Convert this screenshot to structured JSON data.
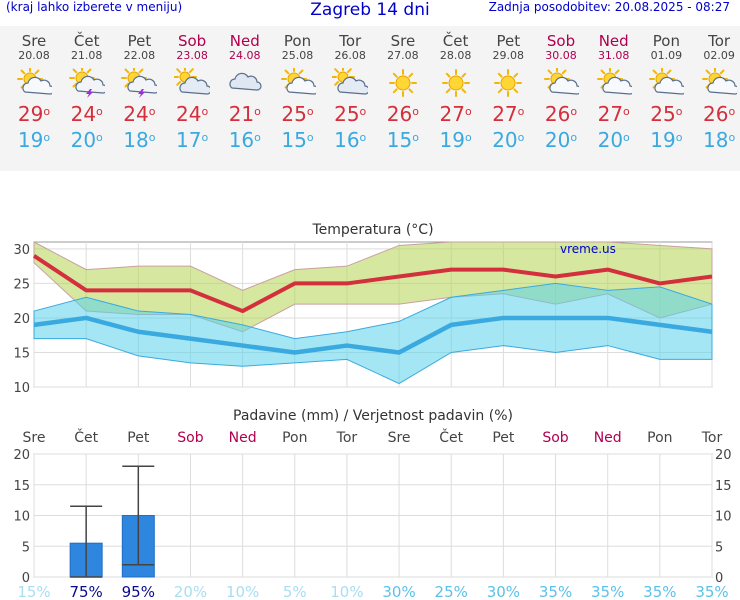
{
  "header": {
    "menu_hint": "(kraj lahko izberete v meniju)",
    "title": "Zagreb 14 dni",
    "last_update": "Zadnja posodobitev: 20.08.2025 - 08:27"
  },
  "days": [
    {
      "name": "Sre",
      "date": "20.08",
      "weekend": false,
      "icon": "sun-cloud-icon",
      "tmax": "29",
      "tmin": "19"
    },
    {
      "name": "Čet",
      "date": "21.08",
      "weekend": false,
      "icon": "thunderstorm-icon",
      "tmax": "24",
      "tmin": "20"
    },
    {
      "name": "Pet",
      "date": "22.08",
      "weekend": false,
      "icon": "thunderstorm-icon",
      "tmax": "24",
      "tmin": "18"
    },
    {
      "name": "Sob",
      "date": "23.08",
      "weekend": true,
      "icon": "partly-cloudy-icon",
      "tmax": "24",
      "tmin": "17"
    },
    {
      "name": "Ned",
      "date": "24.08",
      "weekend": true,
      "icon": "cloudy-icon",
      "tmax": "21",
      "tmin": "16"
    },
    {
      "name": "Pon",
      "date": "25.08",
      "weekend": false,
      "icon": "sun-cloud-icon",
      "tmax": "25",
      "tmin": "15"
    },
    {
      "name": "Tor",
      "date": "26.08",
      "weekend": false,
      "icon": "partly-cloudy-icon",
      "tmax": "25",
      "tmin": "16"
    },
    {
      "name": "Sre",
      "date": "27.08",
      "weekend": false,
      "icon": "sun-icon",
      "tmax": "26",
      "tmin": "15"
    },
    {
      "name": "Čet",
      "date": "28.08",
      "weekend": false,
      "icon": "sun-icon",
      "tmax": "27",
      "tmin": "19"
    },
    {
      "name": "Pet",
      "date": "29.08",
      "weekend": false,
      "icon": "sun-icon",
      "tmax": "27",
      "tmin": "20"
    },
    {
      "name": "Sob",
      "date": "30.08",
      "weekend": true,
      "icon": "sun-cloud-icon",
      "tmax": "26",
      "tmin": "20"
    },
    {
      "name": "Ned",
      "date": "31.08",
      "weekend": true,
      "icon": "sun-cloud-icon",
      "tmax": "27",
      "tmin": "20"
    },
    {
      "name": "Pon",
      "date": "01.09",
      "weekend": false,
      "icon": "sun-cloud-icon",
      "tmax": "25",
      "tmin": "19"
    },
    {
      "name": "Tor",
      "date": "02.09",
      "weekend": false,
      "icon": "sun-cloud-icon",
      "tmax": "26",
      "tmin": "18"
    }
  ],
  "colors": {
    "max": "#d32f3c",
    "min": "#3aa9e0",
    "weekend": "#b0004e",
    "precip": "#2e86de"
  },
  "chart_data": [
    {
      "type": "line",
      "title": "Temperatura (°C)",
      "watermark": "vreme.us",
      "ylim": [
        10,
        31
      ],
      "yticks": [
        10,
        15,
        20,
        25,
        30
      ],
      "series": [
        {
          "name": "max",
          "values": [
            29,
            24,
            24,
            24,
            21,
            25,
            25,
            26,
            27,
            27,
            26,
            27,
            25,
            26
          ]
        },
        {
          "name": "min",
          "values": [
            19,
            20,
            18,
            17,
            16,
            15,
            16,
            15,
            19,
            20,
            20,
            20,
            19,
            18
          ]
        },
        {
          "name": "max_high",
          "values": [
            31,
            27,
            27.5,
            27.5,
            24,
            27,
            27.5,
            30.5,
            31,
            31,
            31,
            31,
            30.5,
            30
          ]
        },
        {
          "name": "max_low",
          "values": [
            28,
            21,
            20.5,
            20.5,
            18,
            22,
            22,
            22,
            23,
            23.5,
            22,
            23.5,
            20,
            22
          ]
        },
        {
          "name": "min_high",
          "values": [
            21,
            23,
            21,
            20.5,
            19,
            17,
            18,
            19.5,
            23,
            24,
            25,
            24,
            24.5,
            22
          ]
        },
        {
          "name": "min_low",
          "values": [
            17,
            17,
            14.5,
            13.5,
            13,
            13.5,
            14,
            10.5,
            15,
            16,
            15,
            16,
            14,
            14
          ]
        }
      ]
    },
    {
      "type": "bar",
      "title": "Padavine (mm) / Verjetnost padavin (%)",
      "categories": [
        "Sre",
        "Čet",
        "Pet",
        "Sob",
        "Ned",
        "Pon",
        "Tor",
        "Sre",
        "Čet",
        "Pet",
        "Sob",
        "Ned",
        "Pon",
        "Tor"
      ],
      "weekend": [
        false,
        false,
        false,
        true,
        true,
        false,
        false,
        false,
        false,
        false,
        true,
        true,
        false,
        false
      ],
      "ylim": [
        0,
        20
      ],
      "yticks": [
        0,
        5,
        10,
        15,
        20
      ],
      "values": [
        0,
        5.5,
        10,
        0,
        0,
        0,
        0,
        0,
        0,
        0,
        0,
        0,
        0,
        0
      ],
      "error_high": [
        null,
        11.5,
        18,
        null,
        null,
        null,
        null,
        null,
        null,
        null,
        null,
        null,
        null,
        null
      ],
      "error_low": [
        null,
        0,
        2,
        null,
        null,
        null,
        null,
        null,
        null,
        null,
        null,
        null,
        null,
        null
      ],
      "probability": [
        "15%",
        "75%",
        "95%",
        "20%",
        "10%",
        "5%",
        "10%",
        "30%",
        "25%",
        "30%",
        "35%",
        "35%",
        "35%",
        "35%"
      ]
    }
  ]
}
